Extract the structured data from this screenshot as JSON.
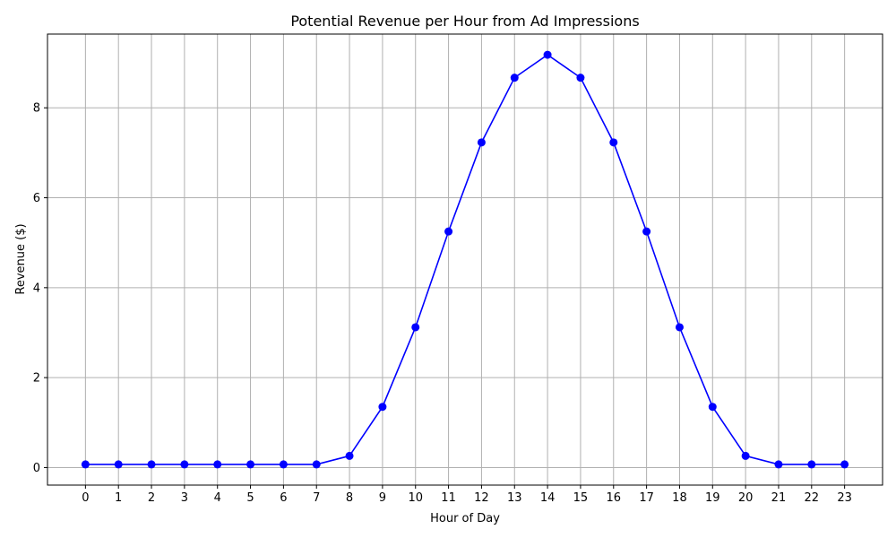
{
  "chart_data": {
    "type": "line",
    "title": "Potential Revenue per Hour from Ad Impressions",
    "xlabel": "Hour of Day",
    "ylabel": "Revenue ($)",
    "x": [
      0,
      1,
      2,
      3,
      4,
      5,
      6,
      7,
      8,
      9,
      10,
      11,
      12,
      13,
      14,
      15,
      16,
      17,
      18,
      19,
      20,
      21,
      22,
      23
    ],
    "series": [
      {
        "values": [
          0.07,
          0.07,
          0.07,
          0.07,
          0.07,
          0.07,
          0.07,
          0.07,
          0.26,
          1.35,
          3.12,
          5.25,
          7.23,
          8.67,
          9.18,
          8.67,
          7.23,
          5.25,
          3.12,
          1.35,
          0.26,
          0.07,
          0.07,
          0.07
        ],
        "color": "#0000ff",
        "marker": "circle"
      }
    ],
    "xlim": [
      -1.15,
      24.15
    ],
    "ylim": [
      -0.39,
      9.64
    ],
    "xticks": [
      "0",
      "1",
      "2",
      "3",
      "4",
      "5",
      "6",
      "7",
      "8",
      "9",
      "10",
      "11",
      "12",
      "13",
      "14",
      "15",
      "16",
      "17",
      "18",
      "19",
      "20",
      "21",
      "22",
      "23"
    ],
    "yticks": [
      {
        "value": 0,
        "label": "0"
      },
      {
        "value": 2,
        "label": "2"
      },
      {
        "value": 4,
        "label": "4"
      },
      {
        "value": 6,
        "label": "6"
      },
      {
        "value": 8,
        "label": "8"
      }
    ],
    "grid": true,
    "grid_color": "#b0b0b0"
  }
}
